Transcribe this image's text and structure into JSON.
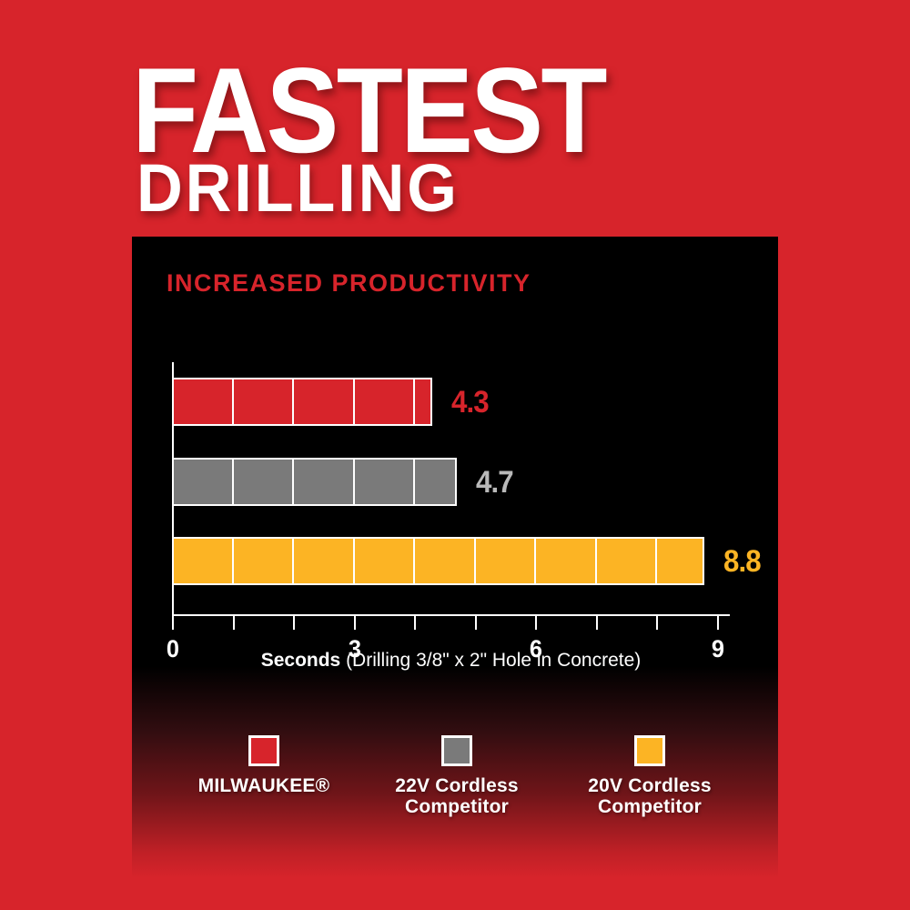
{
  "title": {
    "line1": "FASTEST",
    "line2": "DRILLING"
  },
  "panel": {
    "heading": "INCREASED PRODUCTIVITY"
  },
  "chart_data": {
    "type": "bar",
    "orientation": "horizontal",
    "title": "INCREASED PRODUCTIVITY",
    "categories": [
      "MILWAUKEE®",
      "22V Cordless Competitor",
      "20V Cordless Competitor"
    ],
    "values": [
      4.3,
      4.7,
      8.8
    ],
    "value_labels": [
      "4.3",
      "4.7",
      "8.8"
    ],
    "bar_colors": [
      "#d7242b",
      "#7a7a7a",
      "#fcb424"
    ],
    "value_label_colors": [
      "#d7242b",
      "#b9b9b9",
      "#fcb424"
    ],
    "xlim": [
      0,
      9
    ],
    "tick_values": [
      0,
      1,
      2,
      3,
      4,
      5,
      6,
      7,
      8,
      9
    ],
    "labeled_ticks": [
      0,
      3,
      6,
      9
    ],
    "xlabel_bold": "Seconds",
    "xlabel_rest": " (Drilling 3/8\" x 2\" Hole in Concrete)",
    "segment_interval": 1,
    "grid": false,
    "legend_position": "bottom"
  },
  "legend": {
    "items": [
      {
        "color": "#d7242b",
        "label_lines": [
          "MILWAUKEE®"
        ]
      },
      {
        "color": "#7a7a7a",
        "label_lines": [
          "22V Cordless",
          "Competitor"
        ]
      },
      {
        "color": "#fcb424",
        "label_lines": [
          "20V Cordless",
          "Competitor"
        ]
      }
    ]
  },
  "colors": {
    "background_red": "#d7242b",
    "panel_black": "#000000",
    "axis_white": "#ffffff",
    "heading_red": "#d7242b"
  }
}
